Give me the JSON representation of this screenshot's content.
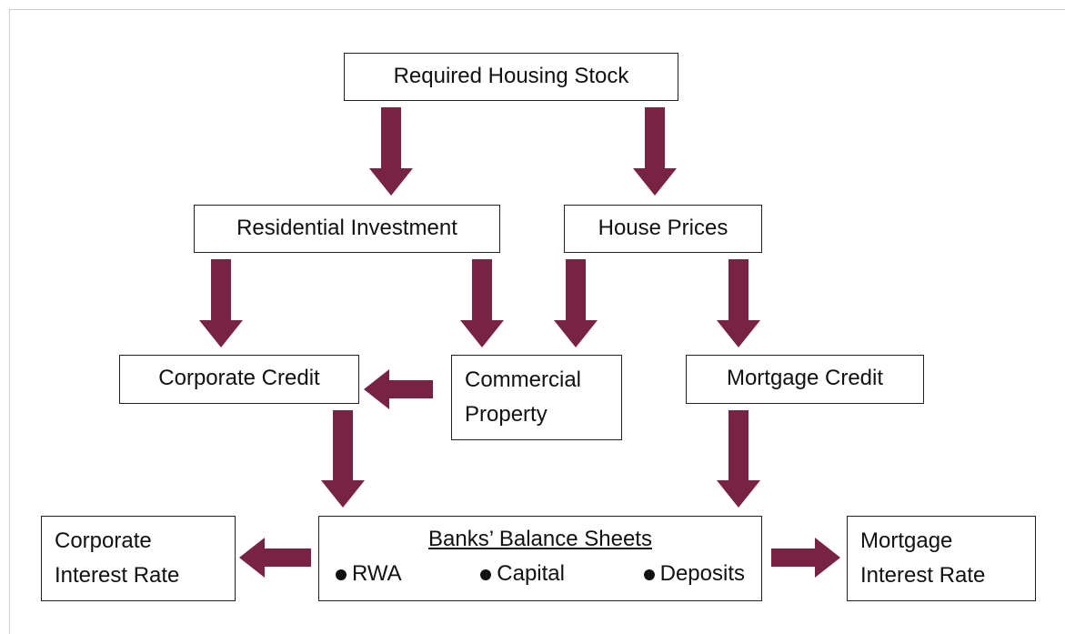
{
  "nodes": [
    {
      "id": "stock",
      "lines": [
        "Required Housing Stock"
      ]
    },
    {
      "id": "resinv",
      "lines": [
        "Residential Investment"
      ]
    },
    {
      "id": "prices",
      "lines": [
        "House Prices"
      ]
    },
    {
      "id": "corpcredit",
      "lines": [
        "Corporate Credit"
      ]
    },
    {
      "id": "commprop",
      "lines": [
        "Commercial",
        "Property"
      ]
    },
    {
      "id": "mortcredit",
      "lines": [
        "Mortgage Credit"
      ]
    },
    {
      "id": "corprate",
      "lines": [
        "Corporate",
        "Interest Rate"
      ]
    },
    {
      "id": "mortrate",
      "lines": [
        "Mortgage",
        "Interest Rate"
      ]
    }
  ],
  "banks": {
    "title": "Banks’ Balance Sheets",
    "items": [
      "RWA",
      "Capital",
      "Deposits"
    ]
  }
}
